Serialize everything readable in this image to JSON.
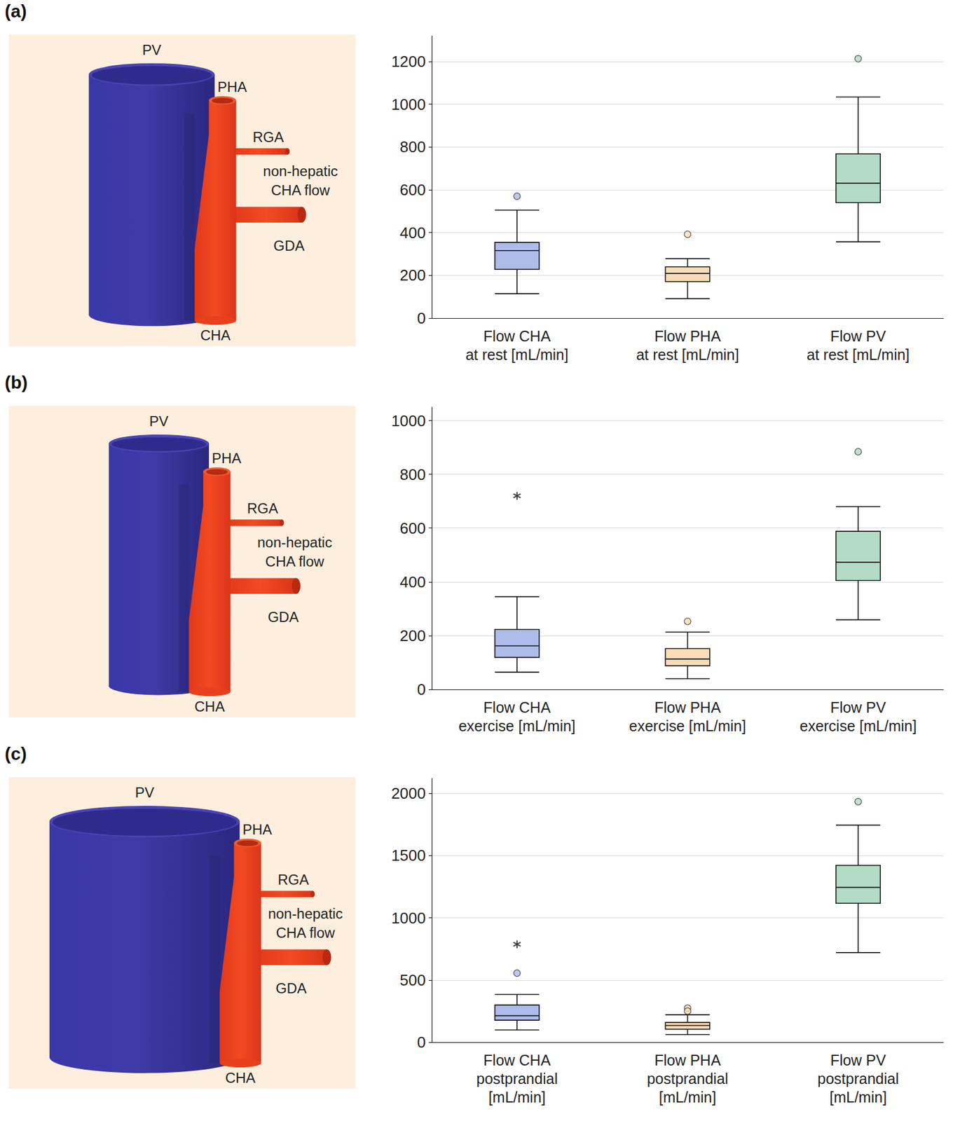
{
  "chart_data": [
    {
      "panel": "(a)",
      "type": "boxplot",
      "diagram": {
        "pv": "PV",
        "pha": "PHA",
        "rga": "RGA",
        "non_hepatic": "non-hepatic\nCHA flow",
        "gda": "GDA",
        "cha": "CHA"
      },
      "categories": [
        "Flow CHA\nat rest [mL/min]",
        "Flow PHA\nat rest [mL/min]",
        "Flow PV\nat rest [mL/min]"
      ],
      "colors": [
        "#aebce9",
        "#fbdcb6",
        "#b3dbc6"
      ],
      "series": [
        {
          "type": "boxplot",
          "values": [
            [
              114,
              228,
              316,
              354,
              505
            ],
            [
              91,
              171,
              209,
              240,
              278
            ],
            [
              357,
              540,
              631,
              768,
              1034
            ]
          ]
        },
        {
          "type": "scatter",
          "marker": "circle",
          "values": [
            [
              570
            ],
            [
              392
            ],
            [
              1213
            ]
          ]
        },
        {
          "type": "scatter",
          "marker": "asterisk",
          "values": [
            [],
            [],
            []
          ]
        }
      ],
      "ylim": [
        0,
        1320
      ],
      "yticks": [
        0,
        200,
        400,
        600,
        800,
        1000,
        1200
      ],
      "grid": true
    },
    {
      "panel": "(b)",
      "type": "boxplot",
      "diagram": {
        "pv": "PV",
        "pha": "PHA",
        "rga": "RGA",
        "non_hepatic": "non-hepatic\nCHA flow",
        "gda": "GDA",
        "cha": "CHA"
      },
      "categories": [
        "Flow CHA\nexercise [mL/min]",
        "Flow PHA\nexercise [mL/min]",
        "Flow PV\nexercise [mL/min]"
      ],
      "colors": [
        "#aebce9",
        "#fbdcb6",
        "#b3dbc6"
      ],
      "series": [
        {
          "type": "boxplot",
          "values": [
            [
              64,
              119,
              162,
              223,
              345
            ],
            [
              40,
              88,
              113,
              152,
              213
            ],
            [
              259,
              405,
              473,
              588,
              680
            ]
          ]
        },
        {
          "type": "scatter",
          "marker": "circle",
          "values": [
            [],
            [
              253
            ],
            [
              884
            ]
          ]
        },
        {
          "type": "scatter",
          "marker": "asterisk",
          "values": [
            [
              720
            ],
            [],
            []
          ]
        }
      ],
      "ylim": [
        0,
        1050
      ],
      "yticks": [
        0,
        200,
        400,
        600,
        800,
        1000
      ],
      "grid": true
    },
    {
      "panel": "(c)",
      "type": "boxplot",
      "diagram": {
        "pv": "PV",
        "pha": "PHA",
        "rga": "RGA",
        "non_hepatic": "non-hepatic\nCHA flow",
        "gda": "GDA",
        "cha": "CHA"
      },
      "categories": [
        "Flow CHA\npostprandial\n[mL/min]",
        "Flow PHA\npostprandial\n[mL/min]",
        "Flow PV\npostprandial\n[mL/min]"
      ],
      "colors": [
        "#aebce9",
        "#fbdcb6",
        "#b3dbc6"
      ],
      "series": [
        {
          "type": "boxplot",
          "values": [
            [
              98,
              177,
              213,
              299,
              384
            ],
            [
              61,
              104,
              134,
              159,
              220
            ],
            [
              720,
              1116,
              1244,
              1421,
              1744
            ]
          ]
        },
        {
          "type": "scatter",
          "marker": "circle",
          "values": [
            [
              555
            ],
            [
              274,
              250
            ],
            [
              1933
            ]
          ]
        },
        {
          "type": "scatter",
          "marker": "asterisk",
          "values": [
            [
              787
            ],
            [],
            []
          ]
        }
      ],
      "ylim": [
        0,
        2120
      ],
      "yticks": [
        0,
        500,
        1000,
        1500,
        2000
      ],
      "grid": true
    }
  ]
}
